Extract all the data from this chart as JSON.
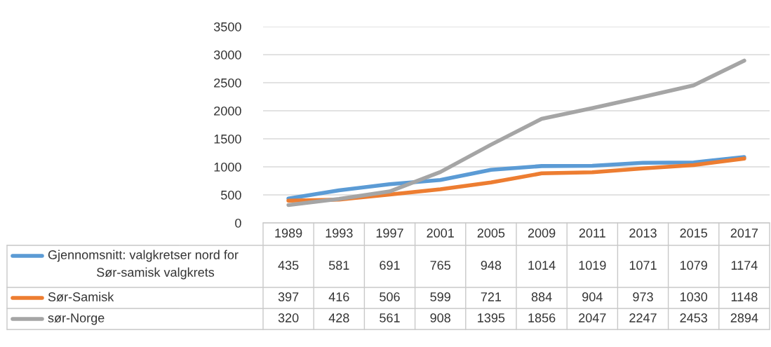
{
  "chart_data": {
    "type": "line",
    "categories": [
      "1989",
      "1993",
      "1997",
      "2001",
      "2005",
      "2009",
      "2011",
      "2013",
      "2015",
      "2017"
    ],
    "series": [
      {
        "name": "Gjennomsnitt: valgkretser nord for Sør-samisk valgkrets",
        "color": "#5b9bd5",
        "values": [
          435,
          581,
          691,
          765,
          948,
          1014,
          1019,
          1071,
          1079,
          1174
        ]
      },
      {
        "name": "Sør-Samisk",
        "color": "#ed7d31",
        "values": [
          397,
          416,
          506,
          599,
          721,
          884,
          904,
          973,
          1030,
          1148
        ]
      },
      {
        "name": "sør-Norge",
        "color": "#a5a5a5",
        "values": [
          320,
          428,
          561,
          908,
          1395,
          1856,
          2047,
          2247,
          2453,
          2894
        ]
      }
    ],
    "ylim": [
      0,
      3500
    ],
    "yticks": [
      0,
      500,
      1000,
      1500,
      2000,
      2500,
      3000,
      3500
    ],
    "grid": "y",
    "legend": "bottom",
    "data_labels": true,
    "marker": "none",
    "line_style": "solid"
  }
}
